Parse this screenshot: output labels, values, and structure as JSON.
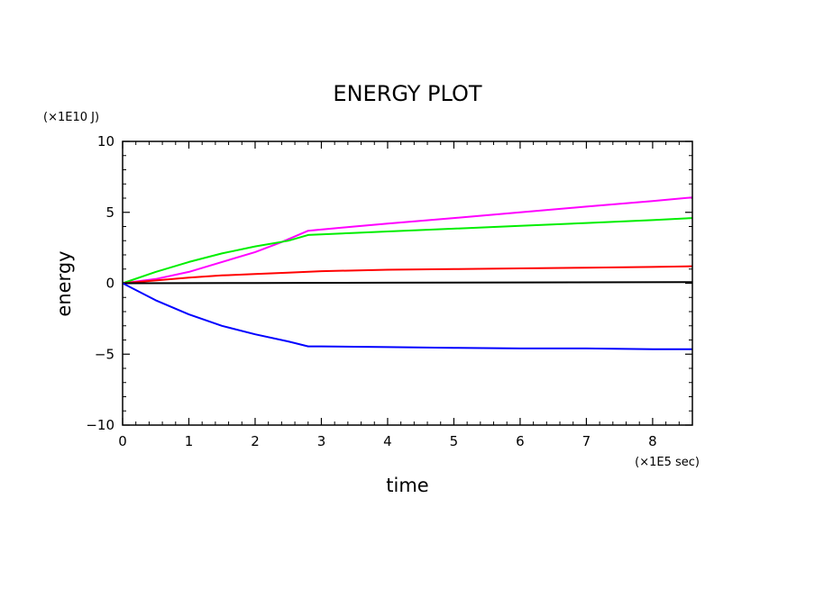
{
  "chart_data": {
    "type": "line",
    "title": "ENERGY PLOT",
    "xlabel": "time",
    "ylabel": "energy",
    "x_unit": "(×1E5 sec)",
    "y_unit": "(×1E10 J)",
    "xlim": [
      0,
      8.6
    ],
    "ylim": [
      -10,
      10
    ],
    "x_ticks": [
      "0",
      "1",
      "2",
      "3",
      "4",
      "5",
      "6",
      "7",
      "8"
    ],
    "y_ticks": [
      "−10",
      "−5",
      "0",
      "5",
      "10"
    ],
    "grid": false,
    "legend": "none",
    "series": [
      {
        "color": "#ff00ff",
        "x": [
          0,
          0.5,
          1,
          1.5,
          2,
          2.4,
          2.8,
          3.5,
          4,
          5,
          6,
          7,
          8,
          8.6
        ],
        "values": [
          0,
          0.3,
          0.8,
          1.5,
          2.2,
          2.9,
          3.7,
          4.0,
          4.2,
          4.6,
          5.0,
          5.4,
          5.8,
          6.05
        ]
      },
      {
        "color": "#00ee00",
        "x": [
          0,
          0.5,
          1,
          1.5,
          2,
          2.5,
          2.8,
          3.5,
          4,
          5,
          6,
          7,
          8,
          8.6
        ],
        "values": [
          0,
          0.8,
          1.5,
          2.1,
          2.6,
          3.0,
          3.4,
          3.55,
          3.65,
          3.85,
          4.05,
          4.25,
          4.45,
          4.6
        ]
      },
      {
        "color": "#ff0000",
        "x": [
          0,
          0.5,
          1,
          1.5,
          2,
          2.5,
          3,
          4,
          5,
          6,
          7,
          8,
          8.6
        ],
        "values": [
          0,
          0.2,
          0.4,
          0.55,
          0.65,
          0.75,
          0.85,
          0.95,
          1.0,
          1.05,
          1.1,
          1.15,
          1.2
        ]
      },
      {
        "color": "#000000",
        "x": [
          0,
          2,
          4,
          6,
          8.6
        ],
        "values": [
          0,
          0.02,
          0.04,
          0.06,
          0.08
        ]
      },
      {
        "color": "#0000ff",
        "x": [
          0,
          0.5,
          1,
          1.5,
          2,
          2.5,
          2.8,
          3,
          4,
          5,
          6,
          7,
          8,
          8.6
        ],
        "values": [
          0,
          -1.2,
          -2.2,
          -3.0,
          -3.6,
          -4.1,
          -4.45,
          -4.45,
          -4.5,
          -4.55,
          -4.6,
          -4.6,
          -4.65,
          -4.65
        ]
      }
    ]
  }
}
